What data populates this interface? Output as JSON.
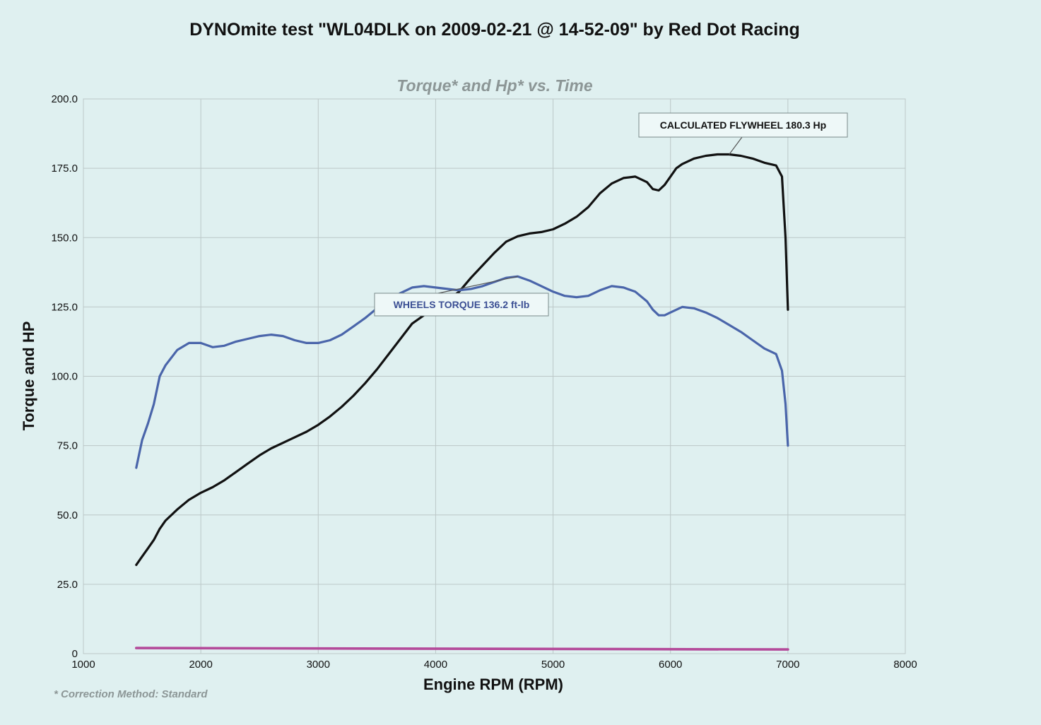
{
  "chart_data": {
    "type": "line",
    "title": "DYNOmite test \"WL04DLK on 2009-02-21 @ 14-52-09\" by Red Dot Racing",
    "subtitle": "Torque* and Hp* vs. Time",
    "xlabel": "Engine RPM (RPM)",
    "ylabel": "Torque and HP",
    "footnote": "* Correction Method: Standard",
    "xlim": [
      1000,
      8000
    ],
    "ylim": [
      0,
      200
    ],
    "grid": true,
    "x_ticks": [
      1000,
      2000,
      3000,
      4000,
      5000,
      6000,
      7000,
      8000
    ],
    "x_tick_labels": [
      "1000",
      "2000",
      "3000",
      "4000",
      "5000",
      "6000",
      "7000",
      "8000"
    ],
    "y_ticks": [
      0,
      25,
      50,
      75,
      100,
      125,
      150,
      175,
      200
    ],
    "y_tick_labels": [
      "0",
      "25.0",
      "50.0",
      "75.0",
      "100.0",
      "125.0",
      "150.0",
      "175.0",
      "200.0"
    ],
    "series": [
      {
        "color": "#111111",
        "x": [
          1450,
          1500,
          1550,
          1600,
          1650,
          1700,
          1800,
          1900,
          2000,
          2100,
          2200,
          2300,
          2400,
          2500,
          2600,
          2700,
          2800,
          2900,
          3000,
          3100,
          3200,
          3300,
          3400,
          3500,
          3600,
          3700,
          3800,
          3900,
          4000,
          4100,
          4200,
          4300,
          4400,
          4500,
          4600,
          4700,
          4800,
          4900,
          5000,
          5100,
          5200,
          5300,
          5400,
          5500,
          5600,
          5700,
          5800,
          5850,
          5900,
          5950,
          6000,
          6050,
          6100,
          6150,
          6200,
          6300,
          6400,
          6500,
          6600,
          6700,
          6800,
          6900,
          6950,
          6980,
          7000
        ],
        "values": [
          32,
          35,
          38,
          41,
          45,
          48,
          52,
          55.5,
          58,
          60,
          62.5,
          65.5,
          68.5,
          71.5,
          74,
          76,
          78,
          80,
          82.5,
          85.5,
          89,
          93,
          97.5,
          102.5,
          108,
          113.5,
          119,
          122,
          125,
          127.5,
          130.5,
          135.5,
          140,
          144.5,
          148.5,
          150.5,
          151.5,
          152,
          153,
          155,
          157.5,
          161,
          166,
          169.5,
          171.5,
          172,
          170,
          167.5,
          167,
          169,
          172,
          175,
          176.5,
          177.5,
          178.5,
          179.5,
          180,
          180,
          179.5,
          178.5,
          177,
          176,
          172,
          150,
          124
        ]
      },
      {
        "color": "#4a65aa",
        "x": [
          1450,
          1500,
          1550,
          1600,
          1650,
          1700,
          1800,
          1900,
          1950,
          2000,
          2100,
          2200,
          2300,
          2400,
          2500,
          2600,
          2700,
          2800,
          2900,
          3000,
          3100,
          3200,
          3300,
          3400,
          3500,
          3600,
          3700,
          3800,
          3900,
          4000,
          4100,
          4200,
          4300,
          4400,
          4500,
          4600,
          4700,
          4800,
          4900,
          5000,
          5100,
          5200,
          5300,
          5400,
          5500,
          5600,
          5700,
          5800,
          5850,
          5900,
          5950,
          6000,
          6100,
          6200,
          6300,
          6400,
          6500,
          6600,
          6700,
          6800,
          6900,
          6950,
          6980,
          7000
        ],
        "values": [
          67,
          77,
          83,
          90,
          100,
          104,
          109.5,
          112,
          112,
          112,
          110.5,
          111,
          112.5,
          113.5,
          114.5,
          115,
          114.5,
          113,
          112,
          112,
          113,
          115,
          118,
          121,
          124.5,
          127.5,
          130,
          132,
          132.5,
          132,
          131.5,
          131,
          131.5,
          132.5,
          134,
          135.5,
          136,
          134.5,
          132.5,
          130.5,
          129,
          128.5,
          129,
          131,
          132.5,
          132,
          130.5,
          127,
          124,
          122,
          122,
          123,
          125,
          124.5,
          123,
          121,
          118.5,
          116,
          113,
          110,
          108,
          102,
          90,
          75
        ]
      },
      {
        "color": "#b44a9a",
        "x": [
          1450,
          7000
        ],
        "values": [
          2,
          1.5
        ]
      }
    ],
    "annotations": [
      {
        "text": "CALCULATED FLYWHEEL 180.3 Hp",
        "x": 6500,
        "y": 180
      },
      {
        "text": "WHEELS TORQUE 136.2 ft-lb",
        "x": 4700,
        "y": 136
      }
    ]
  }
}
